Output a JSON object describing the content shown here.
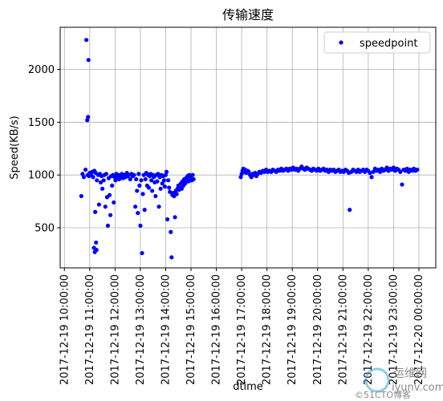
{
  "chart_data": {
    "type": "scatter",
    "title": "传输速度",
    "xlabel": "dtime",
    "ylabel": "Speed(KB/s)",
    "x_tick_labels": [
      "2017-12-19 10:00:00",
      "2017-12-19 11:00:00",
      "2017-12-19 12:00:00",
      "2017-12-19 13:00:00",
      "2017-12-19 14:00:00",
      "2017-12-19 15:00:00",
      "2017-12-19 16:00:00",
      "2017-12-19 17:00:00",
      "2017-12-19 18:00:00",
      "2017-12-19 19:00:00",
      "2017-12-19 20:00:00",
      "2017-12-19 21:00:00",
      "2017-12-19 22:00:00",
      "2017-12-19 23:00:00",
      "2017-12-20 00:00:00"
    ],
    "y_ticks": [
      500,
      1000,
      1500,
      2000
    ],
    "xlim": [
      "2017-12-19 09:50",
      "2017-12-20 00:40"
    ],
    "ylim": [
      120,
      2400
    ],
    "grid": true,
    "legend_position": "top-right",
    "marker_color": "#0000ff",
    "series": [
      {
        "name": "speedpoint",
        "points": [
          [
            "2017-12-19 10:40",
            800
          ],
          [
            "2017-12-19 10:43",
            1010
          ],
          [
            "2017-12-19 10:46",
            980
          ],
          [
            "2017-12-19 10:50",
            1050
          ],
          [
            "2017-12-19 10:52",
            2280
          ],
          [
            "2017-12-19 10:54",
            1520
          ],
          [
            "2017-12-19 10:55",
            1000
          ],
          [
            "2017-12-19 10:56",
            1550
          ],
          [
            "2017-12-19 10:57",
            2090
          ],
          [
            "2017-12-19 10:58",
            990
          ],
          [
            "2017-12-19 11:00",
            1020
          ],
          [
            "2017-12-19 11:03",
            1000
          ],
          [
            "2017-12-19 11:06",
            1030
          ],
          [
            "2017-12-19 11:08",
            980
          ],
          [
            "2017-12-19 11:10",
            310
          ],
          [
            "2017-12-19 11:11",
            1040
          ],
          [
            "2017-12-19 11:12",
            270
          ],
          [
            "2017-12-19 11:13",
            650
          ],
          [
            "2017-12-19 11:14",
            1020
          ],
          [
            "2017-12-19 11:15",
            360
          ],
          [
            "2017-12-19 11:16",
            290
          ],
          [
            "2017-12-19 11:17",
            950
          ],
          [
            "2017-12-19 11:20",
            1000
          ],
          [
            "2017-12-19 11:22",
            720
          ],
          [
            "2017-12-19 11:24",
            1010
          ],
          [
            "2017-12-19 11:26",
            930
          ],
          [
            "2017-12-19 11:28",
            990
          ],
          [
            "2017-12-19 11:30",
            870
          ],
          [
            "2017-12-19 11:33",
            950
          ],
          [
            "2017-12-19 11:35",
            1000
          ],
          [
            "2017-12-19 11:37",
            700
          ],
          [
            "2017-12-19 11:39",
            1010
          ],
          [
            "2017-12-19 11:41",
            790
          ],
          [
            "2017-12-19 11:43",
            520
          ],
          [
            "2017-12-19 11:45",
            970
          ],
          [
            "2017-12-19 11:47",
            810
          ],
          [
            "2017-12-19 11:49",
            620
          ],
          [
            "2017-12-19 11:51",
            990
          ],
          [
            "2017-12-19 11:53",
            900
          ],
          [
            "2017-12-19 11:55",
            1000
          ],
          [
            "2017-12-19 11:57",
            740
          ],
          [
            "2017-12-19 11:59",
            980
          ],
          [
            "2017-12-19 12:01",
            950
          ],
          [
            "2017-12-19 12:03",
            1010
          ],
          [
            "2017-12-19 12:05",
            980
          ],
          [
            "2017-12-19 12:08",
            1000
          ],
          [
            "2017-12-19 12:10",
            960
          ],
          [
            "2017-12-19 12:13",
            990
          ],
          [
            "2017-12-19 12:16",
            1010
          ],
          [
            "2017-12-19 12:19",
            970
          ],
          [
            "2017-12-19 12:22",
            1000
          ],
          [
            "2017-12-19 12:25",
            980
          ],
          [
            "2017-12-19 12:28",
            1020
          ],
          [
            "2017-12-19 12:30",
            990
          ],
          [
            "2017-12-19 12:33",
            1000
          ],
          [
            "2017-12-19 12:36",
            960
          ],
          [
            "2017-12-19 12:39",
            1010
          ],
          [
            "2017-12-19 12:42",
            990
          ],
          [
            "2017-12-19 12:45",
            1000
          ],
          [
            "2017-12-19 12:48",
            700
          ],
          [
            "2017-12-19 12:50",
            960
          ],
          [
            "2017-12-19 12:52",
            850
          ],
          [
            "2017-12-19 12:54",
            640
          ],
          [
            "2017-12-19 12:56",
            1010
          ],
          [
            "2017-12-19 12:58",
            900
          ],
          [
            "2017-12-19 13:00",
            520
          ],
          [
            "2017-12-19 13:02",
            950
          ],
          [
            "2017-12-19 13:04",
            260
          ],
          [
            "2017-12-19 13:06",
            820
          ],
          [
            "2017-12-19 13:08",
            1000
          ],
          [
            "2017-12-19 13:10",
            670
          ],
          [
            "2017-12-19 13:12",
            960
          ],
          [
            "2017-12-19 13:14",
            1020
          ],
          [
            "2017-12-19 13:16",
            900
          ],
          [
            "2017-12-19 13:18",
            1000
          ],
          [
            "2017-12-19 13:20",
            880
          ],
          [
            "2017-12-19 13:22",
            990
          ],
          [
            "2017-12-19 13:24",
            1010
          ],
          [
            "2017-12-19 13:26",
            950
          ],
          [
            "2017-12-19 13:28",
            850
          ],
          [
            "2017-12-19 13:30",
            1000
          ],
          [
            "2017-12-19 13:32",
            980
          ],
          [
            "2017-12-19 13:34",
            930
          ],
          [
            "2017-12-19 13:36",
            800
          ],
          [
            "2017-12-19 13:38",
            1000
          ],
          [
            "2017-12-19 13:40",
            940
          ],
          [
            "2017-12-19 13:42",
            1010
          ],
          [
            "2017-12-19 13:44",
            700
          ],
          [
            "2017-12-19 13:46",
            980
          ],
          [
            "2017-12-19 13:48",
            870
          ],
          [
            "2017-12-19 13:50",
            1000
          ],
          [
            "2017-12-19 13:52",
            920
          ],
          [
            "2017-12-19 13:54",
            990
          ],
          [
            "2017-12-19 13:56",
            950
          ],
          [
            "2017-12-19 13:58",
            890
          ],
          [
            "2017-12-19 14:00",
            1000
          ],
          [
            "2017-12-19 14:02",
            1030
          ],
          [
            "2017-12-19 14:04",
            580
          ],
          [
            "2017-12-19 14:06",
            950
          ],
          [
            "2017-12-19 14:08",
            880
          ],
          [
            "2017-12-19 14:10",
            840
          ],
          [
            "2017-12-19 14:12",
            460
          ],
          [
            "2017-12-19 14:14",
            220
          ],
          [
            "2017-12-19 14:16",
            810
          ],
          [
            "2017-12-19 14:18",
            830
          ],
          [
            "2017-12-19 14:20",
            800
          ],
          [
            "2017-12-19 14:22",
            600
          ],
          [
            "2017-12-19 14:24",
            850
          ],
          [
            "2017-12-19 14:26",
            820
          ],
          [
            "2017-12-19 14:28",
            870
          ],
          [
            "2017-12-19 14:30",
            900
          ],
          [
            "2017-12-19 14:32",
            860
          ],
          [
            "2017-12-19 14:34",
            880
          ],
          [
            "2017-12-19 14:36",
            920
          ],
          [
            "2017-12-19 14:38",
            870
          ],
          [
            "2017-12-19 14:40",
            940
          ],
          [
            "2017-12-19 14:42",
            900
          ],
          [
            "2017-12-19 14:44",
            960
          ],
          [
            "2017-12-19 14:46",
            920
          ],
          [
            "2017-12-19 14:48",
            970
          ],
          [
            "2017-12-19 14:50",
            950
          ],
          [
            "2017-12-19 14:52",
            990
          ],
          [
            "2017-12-19 14:54",
            940
          ],
          [
            "2017-12-19 14:56",
            1000
          ],
          [
            "2017-12-19 14:58",
            960
          ],
          [
            "2017-12-19 15:00",
            990
          ],
          [
            "2017-12-19 15:02",
            950
          ],
          [
            "2017-12-19 15:04",
            1000
          ],
          [
            "2017-12-19 15:06",
            960
          ],
          [
            "2017-12-19 16:58",
            980
          ],
          [
            "2017-12-19 17:00",
            1010
          ],
          [
            "2017-12-19 17:02",
            1040
          ],
          [
            "2017-12-19 17:04",
            1060
          ],
          [
            "2017-12-19 17:06",
            1030
          ],
          [
            "2017-12-19 17:08",
            1050
          ],
          [
            "2017-12-19 17:11",
            1020
          ],
          [
            "2017-12-19 17:14",
            1040
          ],
          [
            "2017-12-19 17:17",
            1030
          ],
          [
            "2017-12-19 17:20",
            1000
          ],
          [
            "2017-12-19 17:23",
            980
          ],
          [
            "2017-12-19 17:26",
            1010
          ],
          [
            "2017-12-19 17:29",
            1000
          ],
          [
            "2017-12-19 17:32",
            1020
          ],
          [
            "2017-12-19 17:35",
            990
          ],
          [
            "2017-12-19 17:38",
            1010
          ],
          [
            "2017-12-19 17:42",
            1030
          ],
          [
            "2017-12-19 17:46",
            1020
          ],
          [
            "2017-12-19 17:50",
            1040
          ],
          [
            "2017-12-19 17:54",
            1030
          ],
          [
            "2017-12-19 17:58",
            1050
          ],
          [
            "2017-12-19 18:02",
            1030
          ],
          [
            "2017-12-19 18:06",
            1040
          ],
          [
            "2017-12-19 18:10",
            1030
          ],
          [
            "2017-12-19 18:14",
            1050
          ],
          [
            "2017-12-19 18:18",
            1040
          ],
          [
            "2017-12-19 18:22",
            1030
          ],
          [
            "2017-12-19 18:26",
            1050
          ],
          [
            "2017-12-19 18:30",
            1040
          ],
          [
            "2017-12-19 18:34",
            1060
          ],
          [
            "2017-12-19 18:38",
            1040
          ],
          [
            "2017-12-19 18:42",
            1050
          ],
          [
            "2017-12-19 18:46",
            1060
          ],
          [
            "2017-12-19 18:50",
            1040
          ],
          [
            "2017-12-19 18:54",
            1060
          ],
          [
            "2017-12-19 18:58",
            1050
          ],
          [
            "2017-12-19 19:02",
            1070
          ],
          [
            "2017-12-19 19:06",
            1050
          ],
          [
            "2017-12-19 19:10",
            1060
          ],
          [
            "2017-12-19 19:14",
            1040
          ],
          [
            "2017-12-19 19:18",
            1060
          ],
          [
            "2017-12-19 19:22",
            1080
          ],
          [
            "2017-12-19 19:26",
            1060
          ],
          [
            "2017-12-19 19:30",
            1050
          ],
          [
            "2017-12-19 19:34",
            1070
          ],
          [
            "2017-12-19 19:38",
            1060
          ],
          [
            "2017-12-19 19:42",
            1050
          ],
          [
            "2017-12-19 19:46",
            1040
          ],
          [
            "2017-12-19 19:50",
            1060
          ],
          [
            "2017-12-19 19:54",
            1050
          ],
          [
            "2017-12-19 19:58",
            1040
          ],
          [
            "2017-12-19 20:02",
            1060
          ],
          [
            "2017-12-19 20:06",
            1040
          ],
          [
            "2017-12-19 20:10",
            1050
          ],
          [
            "2017-12-19 20:14",
            1060
          ],
          [
            "2017-12-19 20:18",
            1040
          ],
          [
            "2017-12-19 20:22",
            1050
          ],
          [
            "2017-12-19 20:26",
            1030
          ],
          [
            "2017-12-19 20:30",
            1050
          ],
          [
            "2017-12-19 20:34",
            1040
          ],
          [
            "2017-12-19 20:38",
            1050
          ],
          [
            "2017-12-19 20:42",
            1030
          ],
          [
            "2017-12-19 20:46",
            1040
          ],
          [
            "2017-12-19 20:50",
            1050
          ],
          [
            "2017-12-19 20:54",
            1030
          ],
          [
            "2017-12-19 20:58",
            1040
          ],
          [
            "2017-12-19 21:02",
            1030
          ],
          [
            "2017-12-19 21:06",
            1050
          ],
          [
            "2017-12-19 21:10",
            1040
          ],
          [
            "2017-12-19 21:14",
            1020
          ],
          [
            "2017-12-19 21:16",
            670
          ],
          [
            "2017-12-19 21:20",
            1030
          ],
          [
            "2017-12-19 21:24",
            1050
          ],
          [
            "2017-12-19 21:28",
            1040
          ],
          [
            "2017-12-19 21:32",
            1030
          ],
          [
            "2017-12-19 21:36",
            1050
          ],
          [
            "2017-12-19 21:40",
            1030
          ],
          [
            "2017-12-19 21:44",
            1040
          ],
          [
            "2017-12-19 21:48",
            1050
          ],
          [
            "2017-12-19 21:52",
            1030
          ],
          [
            "2017-12-19 21:56",
            1050
          ],
          [
            "2017-12-19 22:00",
            1040
          ],
          [
            "2017-12-19 22:04",
            1020
          ],
          [
            "2017-12-19 22:08",
            980
          ],
          [
            "2017-12-19 22:12",
            1030
          ],
          [
            "2017-12-19 22:16",
            1060
          ],
          [
            "2017-12-19 22:20",
            1040
          ],
          [
            "2017-12-19 22:24",
            1050
          ],
          [
            "2017-12-19 22:28",
            1030
          ],
          [
            "2017-12-19 22:32",
            1060
          ],
          [
            "2017-12-19 22:36",
            1040
          ],
          [
            "2017-12-19 22:40",
            1050
          ],
          [
            "2017-12-19 22:44",
            1070
          ],
          [
            "2017-12-19 22:48",
            1040
          ],
          [
            "2017-12-19 22:52",
            1060
          ],
          [
            "2017-12-19 22:56",
            1050
          ],
          [
            "2017-12-19 23:00",
            1070
          ],
          [
            "2017-12-19 23:04",
            1040
          ],
          [
            "2017-12-19 23:08",
            1060
          ],
          [
            "2017-12-19 23:12",
            1050
          ],
          [
            "2017-12-19 23:16",
            1030
          ],
          [
            "2017-12-19 23:20",
            910
          ],
          [
            "2017-12-19 23:24",
            1050
          ],
          [
            "2017-12-19 23:28",
            1040
          ],
          [
            "2017-12-19 23:32",
            1060
          ],
          [
            "2017-12-19 23:36",
            1030
          ],
          [
            "2017-12-19 23:40",
            1050
          ],
          [
            "2017-12-19 23:44",
            1040
          ],
          [
            "2017-12-19 23:48",
            1060
          ],
          [
            "2017-12-19 23:52",
            1040
          ],
          [
            "2017-12-19 23:56",
            1050
          ]
        ]
      }
    ]
  },
  "watermark": {
    "brand": "运维网",
    "url": "iyunv.com",
    "copyright": "©51CTO博客"
  }
}
